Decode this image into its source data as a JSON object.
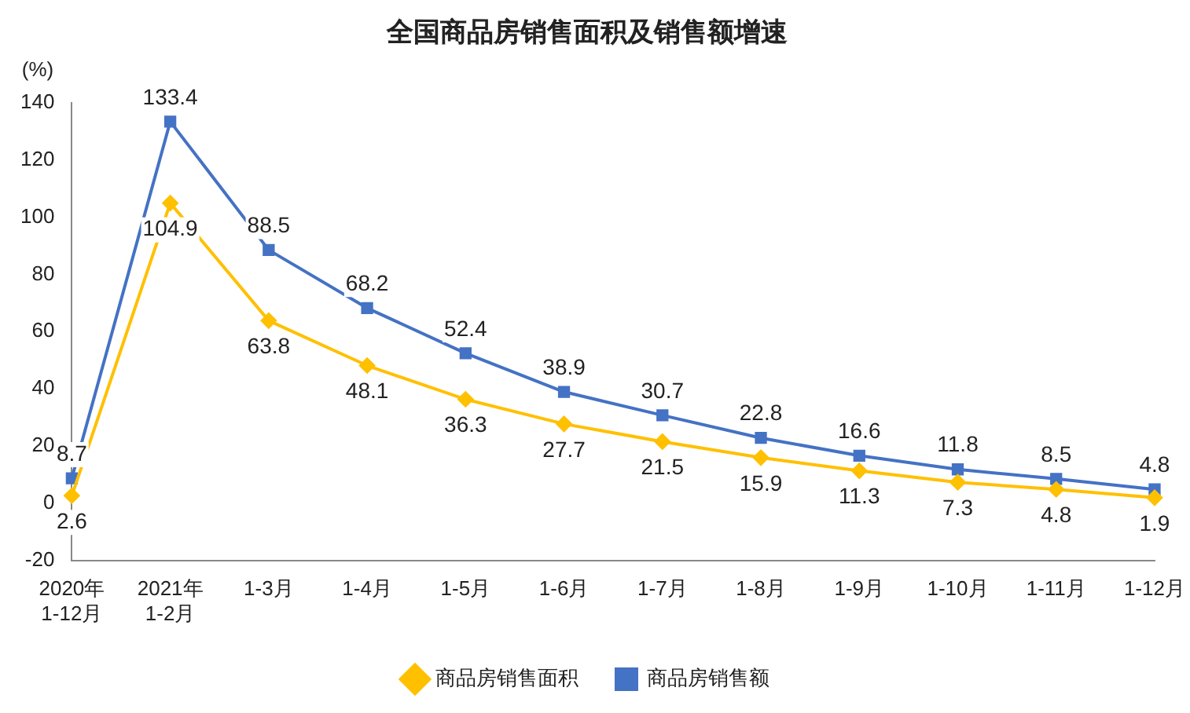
{
  "chart_data": {
    "type": "line",
    "title": "全国商品房销售面积及销售额增速",
    "ylabel": "(%)",
    "categories": [
      "2020年\n1-12月",
      "2021年\n1-2月",
      "1-3月",
      "1-4月",
      "1-5月",
      "1-6月",
      "1-7月",
      "1-8月",
      "1-9月",
      "1-10月",
      "1-11月",
      "1-12月"
    ],
    "series": [
      {
        "name": "商品房销售面积",
        "color": "#ffc000",
        "marker": "diamond",
        "values": [
          2.6,
          104.9,
          63.8,
          48.1,
          36.3,
          27.7,
          21.5,
          15.9,
          11.3,
          7.3,
          4.8,
          1.9
        ]
      },
      {
        "name": "商品房销售额",
        "color": "#4472c4",
        "marker": "square",
        "values": [
          8.7,
          133.4,
          88.5,
          68.2,
          52.4,
          38.9,
          30.7,
          22.8,
          16.6,
          11.8,
          8.5,
          4.8
        ]
      }
    ],
    "ylim": [
      -20,
      140
    ],
    "yticks": [
      -20,
      0,
      20,
      40,
      60,
      80,
      100,
      120,
      140
    ],
    "grid": false,
    "legend": "bottom",
    "data_labels": true,
    "line_style": "solid"
  }
}
